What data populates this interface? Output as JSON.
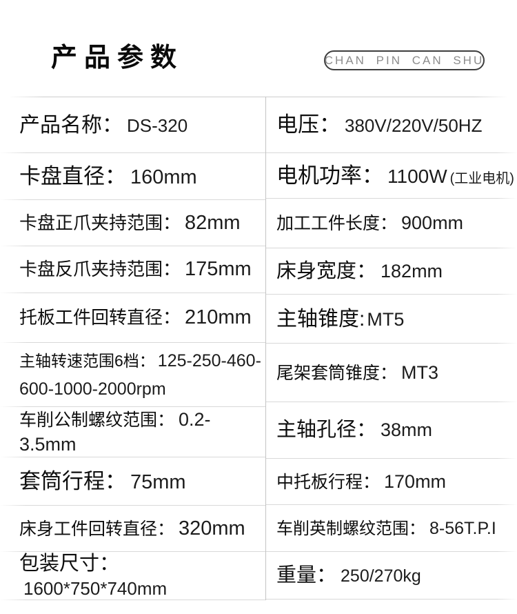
{
  "header": {
    "title": "产品参数",
    "subtitle": "CHAN PIN CAN SHU"
  },
  "colors": {
    "text": "#111111",
    "divider_line": "#d8d8d8",
    "vertical_divider": "#c4c4c4",
    "pill_border": "#3d3d3d",
    "pill_text": "#8c8c8c"
  },
  "table": {
    "left_rows": [
      {
        "label": "产品名称：",
        "value": "DS-320"
      },
      {
        "label": "卡盘直径：",
        "value": "160mm"
      },
      {
        "label": "卡盘正爪夹持范围：",
        "value": "82mm"
      },
      {
        "label": "卡盘反爪夹持范围：",
        "value": "175mm"
      },
      {
        "label": "托板工件回转直径：",
        "value": "210mm"
      },
      {
        "label": "主轴转速范围6档：",
        "value": "125-250-460-600-1000-2000rpm"
      },
      {
        "label": "车削公制螺纹范围：",
        "value": "0.2-3.5mm"
      },
      {
        "label": "套筒行程：",
        "value": "75mm"
      },
      {
        "label": "床身工件回转直径：",
        "value": "320mm"
      },
      {
        "label": "包装尺寸：",
        "value": "1600*750*740mm"
      }
    ],
    "right_rows": [
      {
        "label": "电压：",
        "value": "380V/220V/50HZ"
      },
      {
        "label": "电机功率：",
        "value": "1100W",
        "note": "(工业电机)"
      },
      {
        "label": "加工工件长度：",
        "value": "900mm"
      },
      {
        "label": "床身宽度：",
        "value": "182mm"
      },
      {
        "label": "主轴锥度:",
        "value": "MT5"
      },
      {
        "label": "尾架套筒锥度：",
        "value": "MT3"
      },
      {
        "label": "主轴孔径：",
        "value": "38mm"
      },
      {
        "label": "中托板行程：",
        "value": "170mm"
      },
      {
        "label": "车削英制螺纹范围：",
        "value": "8-56T.P.I"
      },
      {
        "label": "重量：",
        "value": "250/270kg"
      }
    ]
  }
}
